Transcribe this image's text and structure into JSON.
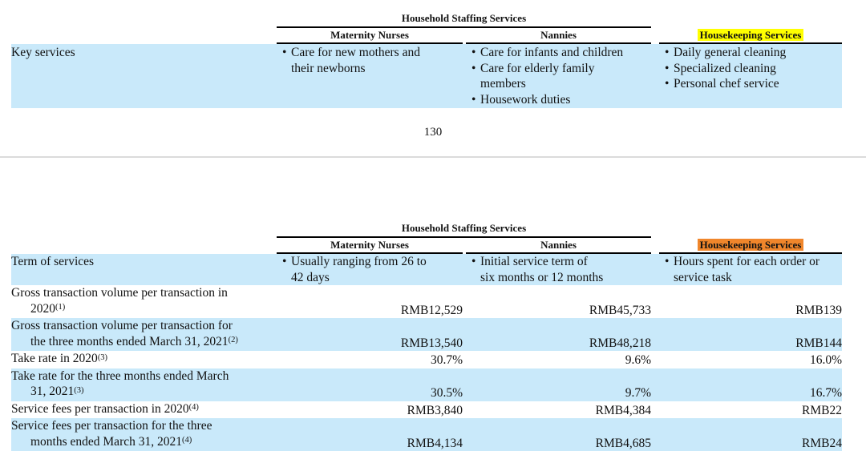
{
  "colors": {
    "row_highlight_blue": "#C9E9FA",
    "housekeeping_highlight_yellow": "#FFFF00",
    "housekeeping_highlight_orange": "#F0862B"
  },
  "glyphs": {
    "bullet": "•"
  },
  "page_number": "130",
  "table1": {
    "group_header": "Household Staffing Services",
    "col_maternity": "Maternity Nurses",
    "col_nannies": "Nannies",
    "col_housekeeping": "Housekeeping Services",
    "key_services": {
      "label": "Key services",
      "maternity": [
        "Care for new mothers and\ntheir newborns"
      ],
      "nannies": [
        "Care for infants and children",
        "Care for elderly family\nmembers",
        "Housework duties"
      ],
      "housekeeping": [
        "Daily general cleaning",
        "Specialized cleaning",
        "Personal chef service"
      ]
    }
  },
  "table2": {
    "group_header": "Household Staffing Services",
    "col_maternity": "Maternity Nurses",
    "col_nannies": "Nannies",
    "col_housekeeping": "Housekeeping Services",
    "term_of_services": {
      "label": "Term of services",
      "maternity": [
        "Usually ranging from 26 to\n42 days"
      ],
      "nannies": [
        "Initial service term of\nsix months or 12 months"
      ],
      "housekeeping": [
        "Hours spent for each order or\nservice task"
      ]
    },
    "rows": [
      {
        "label": "Gross transaction volume per transaction in\n2020",
        "sup": "(1)",
        "maternity": "RMB12,529",
        "nannies": "RMB45,733",
        "housekeeping": "RMB139"
      },
      {
        "label": "Gross transaction volume per transaction for\nthe three months ended March 31, 2021",
        "sup": "(2)",
        "maternity": "RMB13,540",
        "nannies": "RMB48,218",
        "housekeeping": "RMB144"
      },
      {
        "label": "Take rate in 2020",
        "sup": "(3)",
        "maternity": "30.7%",
        "nannies": "9.6%",
        "housekeeping": "16.0%"
      },
      {
        "label": "Take rate for the three months ended March\n31, 2021",
        "sup": "(3)",
        "maternity": "30.5%",
        "nannies": "9.7%",
        "housekeeping": "16.7%"
      },
      {
        "label": "Service fees per transaction in 2020",
        "sup": "(4)",
        "maternity": "RMB3,840",
        "nannies": "RMB4,384",
        "housekeeping": "RMB22"
      },
      {
        "label": "Service fees per transaction for the three\nmonths ended March 31, 2021",
        "sup": "(4)",
        "maternity": "RMB4,134",
        "nannies": "RMB4,685",
        "housekeeping": "RMB24"
      }
    ]
  }
}
